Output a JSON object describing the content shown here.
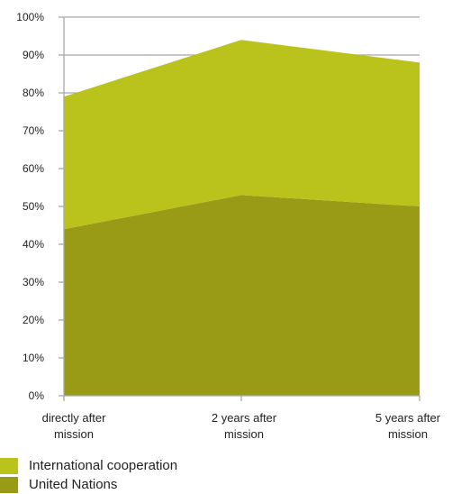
{
  "chart_data": {
    "type": "area",
    "stacked": true,
    "categories": [
      [
        "directly after",
        "mission"
      ],
      [
        "2 years after",
        "mission"
      ],
      [
        "5 years after",
        "mission"
      ]
    ],
    "series": [
      {
        "name": "United Nations",
        "values": [
          44,
          53,
          50
        ],
        "color": "#999b16"
      },
      {
        "name": "International cooperation",
        "values": [
          35,
          41,
          38
        ],
        "color": "#b9c31b"
      }
    ],
    "y_ticks": [
      "0%",
      "10%",
      "20%",
      "30%",
      "40%",
      "50%",
      "60%",
      "70%",
      "80%",
      "90%",
      "100%"
    ],
    "ylim": [
      0,
      100
    ],
    "grid": true,
    "legend_position": "bottom-left"
  },
  "legend": [
    {
      "label": "International cooperation",
      "color": "#b9c31b"
    },
    {
      "label": "United Nations",
      "color": "#999b16"
    }
  ]
}
